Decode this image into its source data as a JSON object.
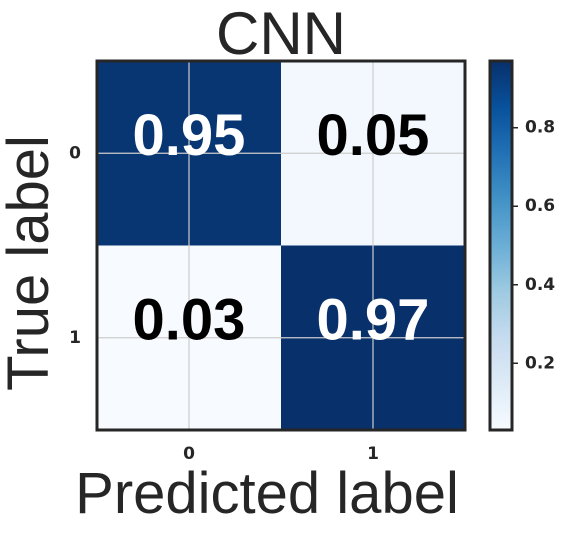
{
  "chart_data": {
    "type": "heatmap",
    "title": "CNN",
    "xlabel": "Predicted label",
    "ylabel": "True label",
    "x_categories": [
      "0",
      "1"
    ],
    "y_categories": [
      "0",
      "1"
    ],
    "values": [
      [
        0.95,
        0.05
      ],
      [
        0.03,
        0.97
      ]
    ],
    "value_labels": [
      [
        "0.95",
        "0.05"
      ],
      [
        "0.03",
        "0.97"
      ]
    ],
    "colormap": "Blues",
    "colors": {
      "low": "#f7fbff",
      "high": "#08306b"
    },
    "colorbar": {
      "range": [
        0.03,
        0.97
      ],
      "ticks": [
        0.2,
        0.4,
        0.6,
        0.8
      ],
      "tick_labels": [
        "0.2",
        "0.4",
        "0.6",
        "0.8"
      ]
    },
    "grid": true
  }
}
